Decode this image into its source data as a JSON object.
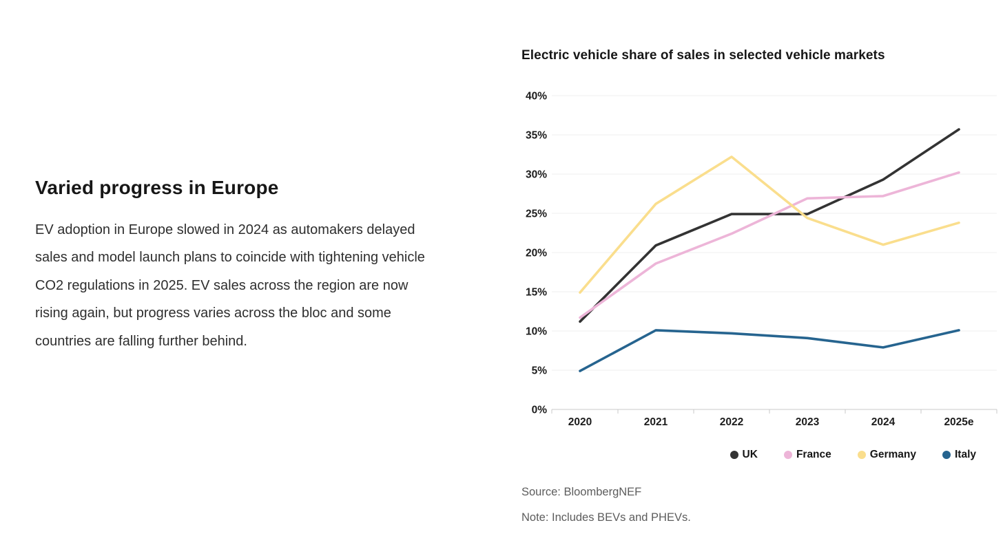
{
  "left_panel": {
    "heading": "Varied progress in Europe",
    "body": "EV adoption in Europe slowed in 2024 as automakers delayed sales and model launch plans to coincide with tightening vehicle CO2 regulations in 2025. EV sales across the region are now rising again, but progress varies across the bloc and some countries are falling further behind."
  },
  "chart": {
    "title": "Electric vehicle share of sales in selected vehicle markets",
    "source": "Source: BloombergNEF",
    "note": "Note: Includes BEVs and PHEVs."
  },
  "chart_data": {
    "type": "line",
    "title": "Electric vehicle share of sales in selected vehicle markets",
    "categories": [
      "2020",
      "2021",
      "2022",
      "2023",
      "2024",
      "2025e"
    ],
    "series": [
      {
        "name": "UK",
        "color": "#333333",
        "values": [
          11.2,
          20.9,
          24.9,
          24.9,
          29.3,
          35.7
        ]
      },
      {
        "name": "France",
        "color": "#EDB5D8",
        "values": [
          11.7,
          18.6,
          22.4,
          26.9,
          27.2,
          30.2
        ]
      },
      {
        "name": "Germany",
        "color": "#FADE8D",
        "values": [
          14.9,
          26.2,
          32.2,
          24.4,
          21.0,
          23.8
        ]
      },
      {
        "name": "Italy",
        "color": "#26648F",
        "values": [
          4.9,
          10.1,
          9.7,
          9.1,
          7.9,
          10.1
        ]
      }
    ],
    "xlabel": "",
    "ylabel": "",
    "ylim": [
      0,
      40
    ],
    "ytick_step": 5,
    "ytick_format": "percent",
    "grid": true,
    "legend_position": "bottom-right",
    "colors": {
      "gridline": "#efefef",
      "axis": "#c9c9c9"
    }
  }
}
